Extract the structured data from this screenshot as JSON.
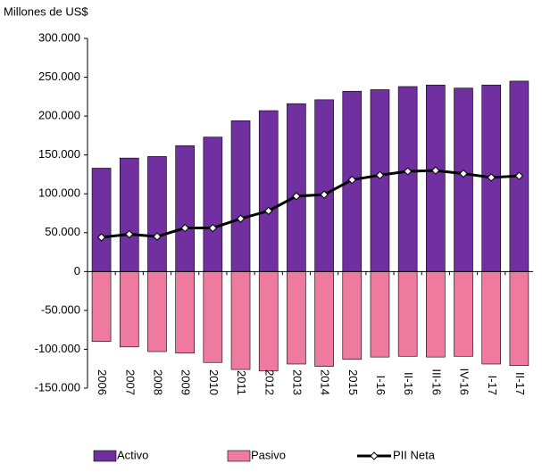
{
  "chart_data": {
    "type": "bar_line",
    "y_label": "Millones de US$",
    "categories": [
      "2006",
      "2007",
      "2008",
      "2009",
      "2010",
      "2011",
      "2012",
      "2013",
      "2014",
      "2015",
      "I-16",
      "II-16",
      "III-16",
      "IV-16",
      "I-17",
      "II-17"
    ],
    "series": [
      {
        "name": "Activo",
        "type": "bar",
        "color": "#7030a0",
        "values": [
          133000,
          146000,
          148000,
          162000,
          173000,
          194000,
          207000,
          216000,
          221000,
          232000,
          234000,
          238000,
          240000,
          236000,
          240000,
          245000
        ]
      },
      {
        "name": "Pasivo",
        "type": "bar",
        "color": "#ee7aa0",
        "values": [
          -90000,
          -97000,
          -103000,
          -105000,
          -117000,
          -126000,
          -128000,
          -119000,
          -122000,
          -113000,
          -110000,
          -109000,
          -110000,
          -109000,
          -119000,
          -121000
        ]
      },
      {
        "name": "PII Neta",
        "type": "line",
        "color": "#000000",
        "values": [
          44000,
          48000,
          45000,
          56000,
          56000,
          68000,
          78000,
          97000,
          99000,
          118000,
          124000,
          129000,
          130000,
          126000,
          121000,
          123000
        ]
      }
    ],
    "ylim": [
      -150000,
      300000
    ],
    "yticks": [
      {
        "value": -150000,
        "label": "-150.000"
      },
      {
        "value": -100000,
        "label": "-100.000"
      },
      {
        "value": -50000,
        "label": "-50.000"
      },
      0,
      {
        "value": 50000,
        "label": "50.000"
      },
      {
        "value": 100000,
        "label": "100.000"
      },
      {
        "value": 150000,
        "label": "150.000"
      },
      {
        "value": 200000,
        "label": "200.000"
      },
      {
        "value": 250000,
        "label": "250.000"
      },
      {
        "value": 300000,
        "label": "300.000"
      }
    ]
  }
}
